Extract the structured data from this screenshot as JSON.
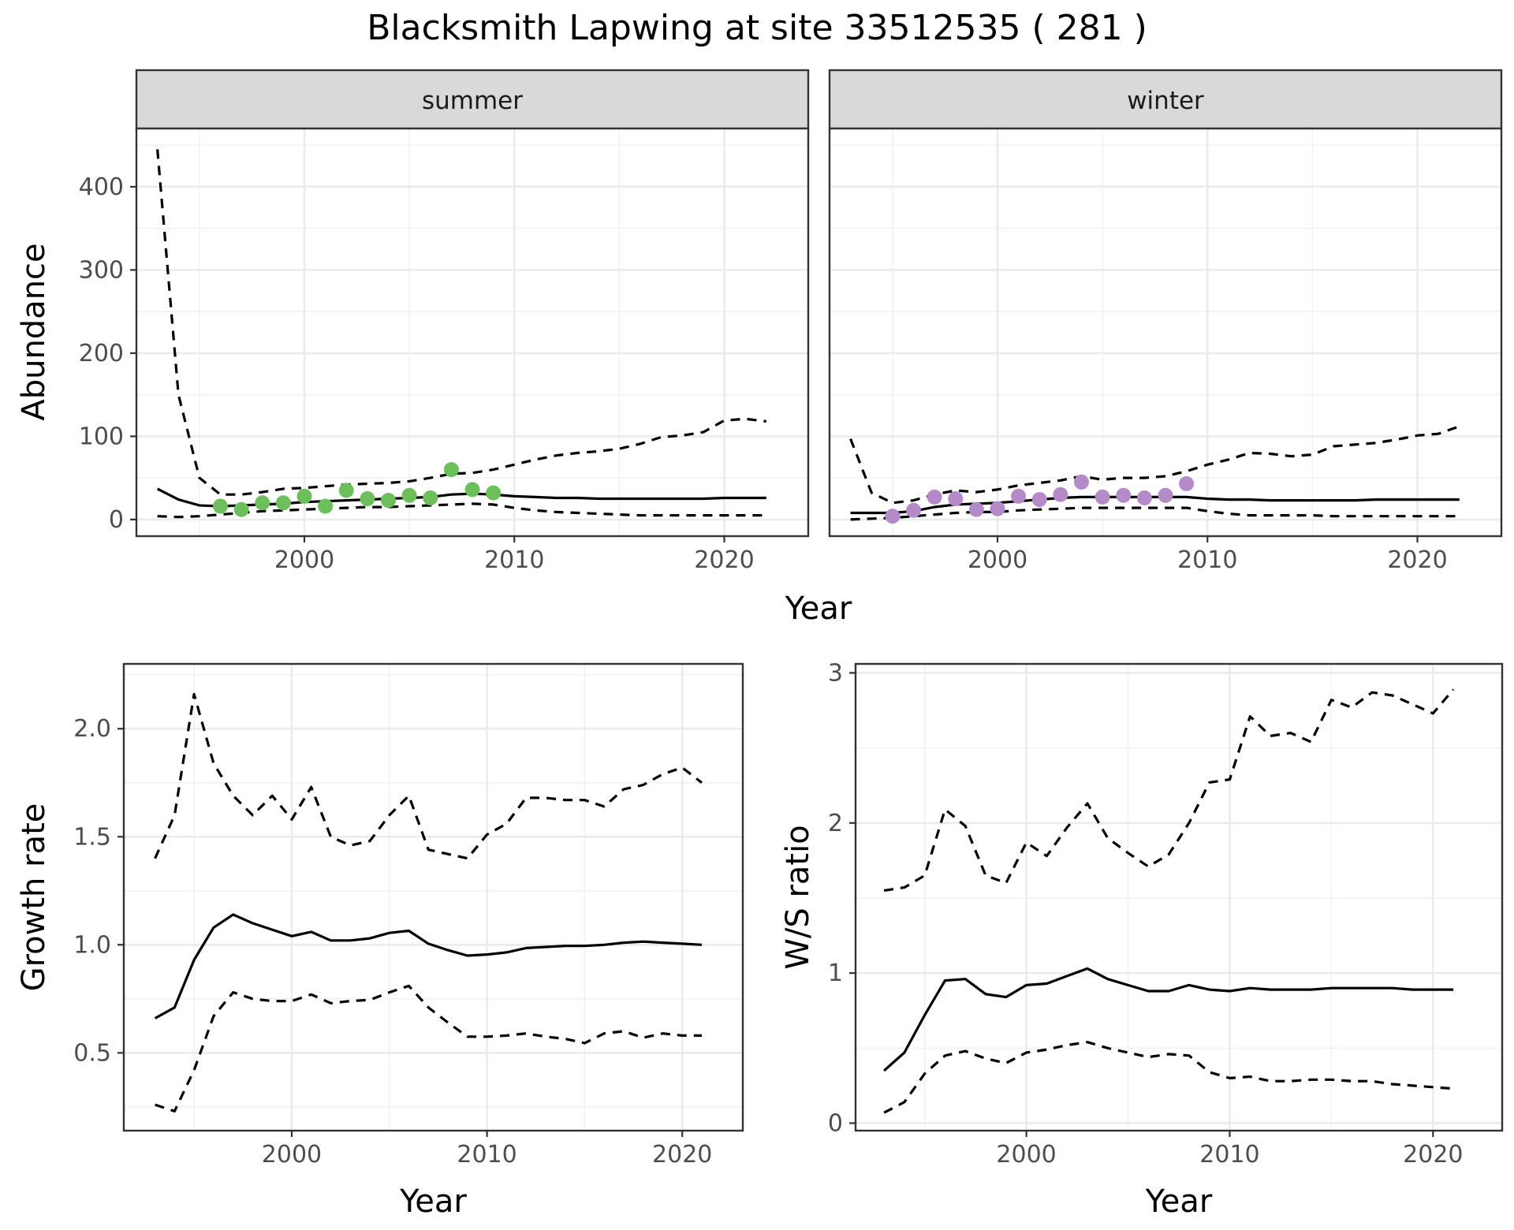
{
  "title": "Blacksmith Lapwing at site 33512535 ( 281 )",
  "chart_data": [
    {
      "type": "line",
      "panel": "abundance",
      "xlabel": "Year",
      "ylabel": "Abundance",
      "xlim": [
        1992,
        2024
      ],
      "ylim": [
        -20,
        470
      ],
      "x_ticks": [
        2000,
        2010,
        2020
      ],
      "y_ticks": [
        0,
        100,
        200,
        300,
        400
      ],
      "grid": true,
      "facets": [
        {
          "label": "summer",
          "point_color": "#6dbf5c",
          "estimate": {
            "x": [
              1993,
              1994,
              1995,
              1996,
              1997,
              1998,
              1999,
              2000,
              2001,
              2002,
              2003,
              2004,
              2005,
              2006,
              2007,
              2008,
              2009,
              2010,
              2011,
              2012,
              2013,
              2014,
              2015,
              2016,
              2017,
              2018,
              2019,
              2020,
              2021,
              2022
            ],
            "y": [
              37,
              24,
              17,
              16,
              17,
              18,
              19,
              21,
              22,
              23,
              24,
              25,
              26,
              27,
              30,
              31,
              30,
              28,
              27,
              26,
              26,
              25,
              25,
              25,
              25,
              25,
              25,
              26,
              26,
              26
            ]
          },
          "upper": {
            "x": [
              1993,
              1994,
              1995,
              1996,
              1997,
              1998,
              1999,
              2000,
              2001,
              2002,
              2003,
              2004,
              2005,
              2006,
              2007,
              2008,
              2009,
              2010,
              2011,
              2012,
              2013,
              2014,
              2015,
              2016,
              2017,
              2018,
              2019,
              2020,
              2021,
              2022
            ],
            "y": [
              445,
              150,
              50,
              30,
              30,
              33,
              37,
              38,
              40,
              42,
              43,
              44,
              46,
              50,
              55,
              56,
              60,
              66,
              72,
              77,
              80,
              82,
              85,
              91,
              99,
              101,
              105,
              119,
              121,
              118
            ]
          },
          "lower": {
            "x": [
              1993,
              1994,
              1995,
              1996,
              1997,
              1998,
              1999,
              2000,
              2001,
              2002,
              2003,
              2004,
              2005,
              2006,
              2007,
              2008,
              2009,
              2010,
              2011,
              2012,
              2013,
              2014,
              2015,
              2016,
              2017,
              2018,
              2019,
              2020,
              2021,
              2022
            ],
            "y": [
              4,
              3,
              4,
              6,
              8,
              10,
              11,
              12,
              13,
              14,
              15,
              15,
              16,
              17,
              18,
              19,
              18,
              14,
              11,
              9,
              8,
              7,
              6,
              5,
              5,
              5,
              5,
              5,
              5,
              5
            ]
          },
          "observed": {
            "x": [
              1996,
              1997,
              1998,
              1999,
              2000,
              2001,
              2002,
              2003,
              2004,
              2005,
              2006,
              2007,
              2008,
              2009
            ],
            "y": [
              16,
              12,
              20,
              20,
              28,
              16,
              35,
              25,
              23,
              29,
              26,
              60,
              36,
              32
            ]
          }
        },
        {
          "label": "winter",
          "point_color": "#b58ac8",
          "estimate": {
            "x": [
              1993,
              1994,
              1995,
              1996,
              1997,
              1998,
              1999,
              2000,
              2001,
              2002,
              2003,
              2004,
              2005,
              2006,
              2007,
              2008,
              2009,
              2010,
              2011,
              2012,
              2013,
              2014,
              2015,
              2016,
              2017,
              2018,
              2019,
              2020,
              2021,
              2022
            ],
            "y": [
              8,
              8,
              8,
              10,
              15,
              18,
              19,
              20,
              22,
              24,
              26,
              27,
              27,
              27,
              27,
              27,
              27,
              25,
              24,
              24,
              23,
              23,
              23,
              23,
              23,
              24,
              24,
              24,
              24,
              24
            ]
          },
          "upper": {
            "x": [
              1993,
              1994,
              1995,
              1996,
              1997,
              1998,
              1999,
              2000,
              2001,
              2002,
              2003,
              2004,
              2005,
              2006,
              2007,
              2008,
              2009,
              2010,
              2011,
              2012,
              2013,
              2014,
              2015,
              2016,
              2017,
              2018,
              2019,
              2020,
              2021,
              2022
            ],
            "y": [
              97,
              32,
              20,
              23,
              30,
              35,
              33,
              36,
              41,
              44,
              47,
              52,
              48,
              50,
              50,
              52,
              58,
              66,
              72,
              80,
              79,
              76,
              78,
              88,
              90,
              92,
              96,
              101,
              103,
              112
            ]
          },
          "lower": {
            "x": [
              1993,
              1994,
              1995,
              1996,
              1997,
              1998,
              1999,
              2000,
              2001,
              2002,
              2003,
              2004,
              2005,
              2006,
              2007,
              2008,
              2009,
              2010,
              2011,
              2012,
              2013,
              2014,
              2015,
              2016,
              2017,
              2018,
              2019,
              2020,
              2021,
              2022
            ],
            "y": [
              0,
              1,
              2,
              4,
              6,
              8,
              9,
              9,
              11,
              12,
              13,
              14,
              14,
              14,
              14,
              14,
              14,
              10,
              7,
              5,
              5,
              5,
              5,
              4,
              4,
              4,
              4,
              4,
              4,
              4
            ]
          },
          "observed": {
            "x": [
              1995,
              1996,
              1997,
              1998,
              1999,
              2000,
              2001,
              2002,
              2003,
              2004,
              2005,
              2006,
              2007,
              2008,
              2009
            ],
            "y": [
              4,
              11,
              27,
              25,
              12,
              13,
              28,
              24,
              30,
              45,
              27,
              29,
              26,
              29,
              43
            ]
          }
        }
      ]
    },
    {
      "type": "line",
      "panel": "growth",
      "xlabel": "Year",
      "ylabel": "Growth rate",
      "xlim": [
        1991.4,
        2023.1
      ],
      "ylim": [
        0.14,
        2.3
      ],
      "x_ticks": [
        2000,
        2010,
        2020
      ],
      "y_ticks": [
        0.5,
        1.0,
        1.5,
        2.0
      ],
      "y_tick_labels": [
        "0.5",
        "1.0",
        "1.5",
        "2.0"
      ],
      "grid": true,
      "estimate": {
        "x": [
          1993,
          1994,
          1995,
          1996,
          1997,
          1998,
          1999,
          2000,
          2001,
          2002,
          2003,
          2004,
          2005,
          2006,
          2007,
          2008,
          2009,
          2010,
          2011,
          2012,
          2013,
          2014,
          2015,
          2016,
          2017,
          2018,
          2019,
          2020,
          2021
        ],
        "y": [
          0.66,
          0.71,
          0.93,
          1.08,
          1.14,
          1.1,
          1.07,
          1.04,
          1.06,
          1.02,
          1.02,
          1.03,
          1.055,
          1.065,
          1.005,
          0.975,
          0.95,
          0.955,
          0.965,
          0.985,
          0.99,
          0.995,
          0.995,
          1.0,
          1.01,
          1.015,
          1.01,
          1.005,
          1.0
        ]
      },
      "upper": {
        "x": [
          1993,
          1994,
          1995,
          1996,
          1997,
          1998,
          1999,
          2000,
          2001,
          2002,
          2003,
          2004,
          2005,
          2006,
          2007,
          2008,
          2009,
          2010,
          2011,
          2012,
          2013,
          2014,
          2015,
          2016,
          2017,
          2018,
          2019,
          2020,
          2021
        ],
        "y": [
          1.4,
          1.6,
          2.16,
          1.84,
          1.69,
          1.6,
          1.69,
          1.58,
          1.73,
          1.5,
          1.46,
          1.48,
          1.6,
          1.69,
          1.44,
          1.42,
          1.4,
          1.51,
          1.56,
          1.68,
          1.68,
          1.67,
          1.67,
          1.64,
          1.72,
          1.74,
          1.79,
          1.82,
          1.75
        ]
      },
      "lower": {
        "x": [
          1993,
          1994,
          1995,
          1996,
          1997,
          1998,
          1999,
          2000,
          2001,
          2002,
          2003,
          2004,
          2005,
          2006,
          2007,
          2008,
          2009,
          2010,
          2011,
          2012,
          2013,
          2014,
          2015,
          2016,
          2017,
          2018,
          2019,
          2020,
          2021
        ],
        "y": [
          0.26,
          0.23,
          0.42,
          0.67,
          0.78,
          0.75,
          0.74,
          0.74,
          0.77,
          0.73,
          0.74,
          0.745,
          0.78,
          0.81,
          0.71,
          0.64,
          0.575,
          0.575,
          0.58,
          0.59,
          0.575,
          0.565,
          0.545,
          0.59,
          0.6,
          0.57,
          0.59,
          0.58,
          0.58
        ]
      }
    },
    {
      "type": "line",
      "panel": "ratio",
      "xlabel": "Year",
      "ylabel": "W/S ratio",
      "xlim": [
        1991.6,
        2023.4
      ],
      "ylim": [
        -0.05,
        3.06
      ],
      "x_ticks": [
        2000,
        2010,
        2020
      ],
      "y_ticks": [
        0,
        1,
        2,
        3
      ],
      "grid": true,
      "estimate": {
        "x": [
          1993,
          1994,
          1995,
          1996,
          1997,
          1998,
          1999,
          2000,
          2001,
          2002,
          2003,
          2004,
          2005,
          2006,
          2007,
          2008,
          2009,
          2010,
          2011,
          2012,
          2013,
          2014,
          2015,
          2016,
          2017,
          2018,
          2019,
          2020,
          2021
        ],
        "y": [
          0.35,
          0.47,
          0.72,
          0.95,
          0.96,
          0.86,
          0.84,
          0.92,
          0.93,
          0.98,
          1.03,
          0.96,
          0.92,
          0.88,
          0.88,
          0.92,
          0.89,
          0.88,
          0.9,
          0.89,
          0.89,
          0.89,
          0.9,
          0.9,
          0.9,
          0.9,
          0.89,
          0.89,
          0.89
        ]
      },
      "upper": {
        "x": [
          1993,
          1994,
          1995,
          1996,
          1997,
          1998,
          1999,
          2000,
          2001,
          2002,
          2003,
          2004,
          2005,
          2006,
          2007,
          2008,
          2009,
          2010,
          2011,
          2012,
          2013,
          2014,
          2015,
          2016,
          2017,
          2018,
          2019,
          2020,
          2021
        ],
        "y": [
          1.55,
          1.57,
          1.65,
          2.09,
          1.98,
          1.65,
          1.6,
          1.87,
          1.78,
          1.97,
          2.13,
          1.9,
          1.8,
          1.71,
          1.79,
          2.0,
          2.27,
          2.29,
          2.71,
          2.58,
          2.6,
          2.54,
          2.82,
          2.77,
          2.87,
          2.85,
          2.79,
          2.73,
          2.89
        ]
      },
      "lower": {
        "x": [
          1993,
          1994,
          1995,
          1996,
          1997,
          1998,
          1999,
          2000,
          2001,
          2002,
          2003,
          2004,
          2005,
          2006,
          2007,
          2008,
          2009,
          2010,
          2011,
          2012,
          2013,
          2014,
          2015,
          2016,
          2017,
          2018,
          2019,
          2020,
          2021
        ],
        "y": [
          0.07,
          0.14,
          0.33,
          0.45,
          0.48,
          0.43,
          0.4,
          0.47,
          0.49,
          0.52,
          0.54,
          0.5,
          0.47,
          0.44,
          0.46,
          0.45,
          0.34,
          0.3,
          0.31,
          0.28,
          0.28,
          0.29,
          0.29,
          0.28,
          0.28,
          0.26,
          0.25,
          0.24,
          0.23
        ]
      }
    }
  ]
}
